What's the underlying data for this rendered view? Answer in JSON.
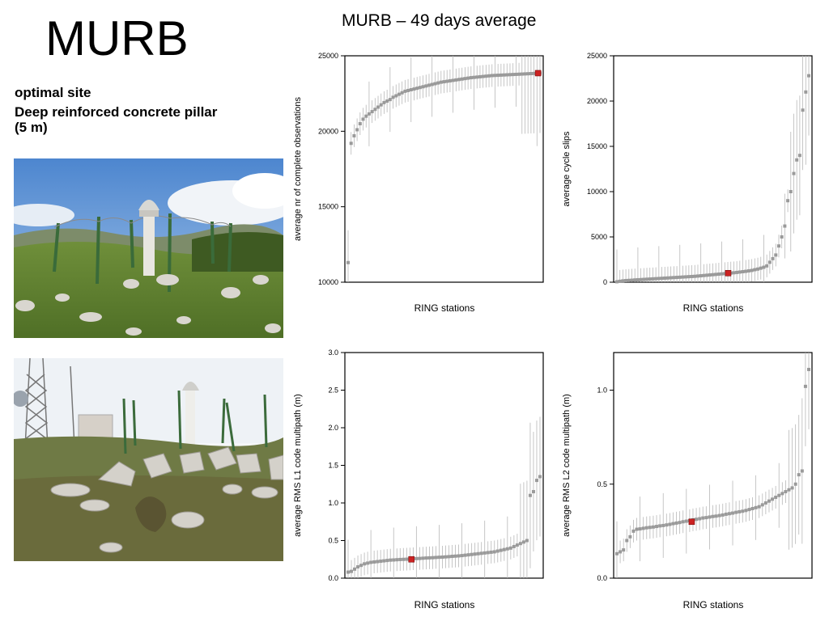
{
  "slide": {
    "title": "MURB",
    "subtitle_line1": "optimal site",
    "subtitle_line2": "Deep reinforced concrete pillar",
    "subtitle_line3": "(5 m)",
    "charts_title": "MURB – 49 days average",
    "highlight_color": "#cc2222",
    "series_color": "#9a9a9a"
  },
  "chart_data": [
    {
      "type": "scatter",
      "ylabel": "average nr of complete observations",
      "xlabel": "RING stations",
      "ylim": [
        10000,
        25000
      ],
      "yticks": [
        "10000",
        "15000",
        "20000",
        "25000"
      ],
      "highlight": {
        "name": "MURB",
        "x_fraction": 0.99,
        "y": 23850
      },
      "series": [
        {
          "y": [
            11300,
            19200,
            19700,
            20100,
            20500,
            20800,
            21000,
            21150,
            21300,
            21450,
            21600,
            21750,
            21900,
            22000,
            22100,
            22250,
            22350,
            22450,
            22550,
            22650,
            22700,
            22750,
            22800,
            22850,
            22900,
            22950,
            23000,
            23050,
            23100,
            23150,
            23200,
            23250,
            23280,
            23310,
            23340,
            23370,
            23400,
            23430,
            23460,
            23490,
            23520,
            23550,
            23570,
            23590,
            23610,
            23630,
            23650,
            23670,
            23690,
            23700,
            23710,
            23720,
            23730,
            23740,
            23750,
            23760,
            23770,
            23780,
            23790,
            23800,
            23810,
            23820,
            23830,
            23840,
            23850
          ]
        }
      ]
    },
    {
      "type": "scatter",
      "ylabel": "average cycle slips",
      "xlabel": "RING stations",
      "ylim": [
        0,
        25000
      ],
      "yticks": [
        "0",
        "5000",
        "10000",
        "15000",
        "20000",
        "25000"
      ],
      "highlight": {
        "name": "MURB",
        "x_fraction": 0.58,
        "y": 1000
      },
      "series": [
        {
          "y": [
            50,
            100,
            150,
            180,
            200,
            220,
            250,
            270,
            290,
            310,
            330,
            350,
            370,
            390,
            410,
            430,
            450,
            470,
            490,
            510,
            530,
            550,
            570,
            590,
            610,
            630,
            650,
            680,
            710,
            740,
            770,
            800,
            830,
            860,
            890,
            920,
            950,
            980,
            1010,
            1040,
            1080,
            1120,
            1160,
            1200,
            1250,
            1300,
            1380,
            1450,
            1550,
            1650,
            1800,
            2200,
            2600,
            3000,
            4000,
            5000,
            6200,
            9000,
            10000,
            12000,
            13500,
            14000,
            19000,
            21000,
            22800
          ]
        }
      ]
    },
    {
      "type": "scatter",
      "ylabel": "average RMS L1 code multipath (m)",
      "xlabel": "RING stations",
      "ylim": [
        0,
        3.0
      ],
      "yticks": [
        "0.0",
        "0.5",
        "1.0",
        "1.5",
        "2.0",
        "2.5",
        "3.0"
      ],
      "highlight": {
        "name": "MURB",
        "x_fraction": 0.33,
        "y": 0.25
      },
      "series": [
        {
          "y": [
            0.08,
            0.09,
            0.12,
            0.15,
            0.17,
            0.19,
            0.2,
            0.21,
            0.215,
            0.22,
            0.225,
            0.23,
            0.235,
            0.24,
            0.242,
            0.245,
            0.248,
            0.25,
            0.252,
            0.255,
            0.258,
            0.26,
            0.262,
            0.265,
            0.268,
            0.27,
            0.272,
            0.275,
            0.278,
            0.28,
            0.283,
            0.286,
            0.29,
            0.293,
            0.296,
            0.3,
            0.305,
            0.31,
            0.315,
            0.32,
            0.325,
            0.33,
            0.335,
            0.34,
            0.345,
            0.35,
            0.36,
            0.37,
            0.38,
            0.39,
            0.4,
            0.42,
            0.44,
            0.46,
            0.48,
            0.5,
            1.1,
            1.15,
            1.3,
            1.35
          ]
        }
      ]
    },
    {
      "type": "scatter",
      "ylabel": "average RMS L2 code multipath (m)",
      "xlabel": "RING stations",
      "ylim": [
        0,
        1.2
      ],
      "yticks": [
        "0.0",
        "0.5",
        "1.0"
      ],
      "highlight": {
        "name": "MURB",
        "x_fraction": 0.39,
        "y": 0.3
      },
      "series": [
        {
          "y": [
            0.13,
            0.14,
            0.15,
            0.2,
            0.22,
            0.25,
            0.26,
            0.262,
            0.265,
            0.268,
            0.27,
            0.272,
            0.275,
            0.278,
            0.28,
            0.283,
            0.286,
            0.29,
            0.293,
            0.296,
            0.3,
            0.303,
            0.306,
            0.31,
            0.313,
            0.316,
            0.32,
            0.322,
            0.325,
            0.328,
            0.33,
            0.333,
            0.336,
            0.34,
            0.343,
            0.346,
            0.35,
            0.353,
            0.356,
            0.36,
            0.365,
            0.37,
            0.375,
            0.38,
            0.39,
            0.4,
            0.41,
            0.42,
            0.43,
            0.44,
            0.45,
            0.46,
            0.47,
            0.48,
            0.5,
            0.55,
            0.57,
            1.02,
            1.11
          ]
        }
      ]
    }
  ]
}
